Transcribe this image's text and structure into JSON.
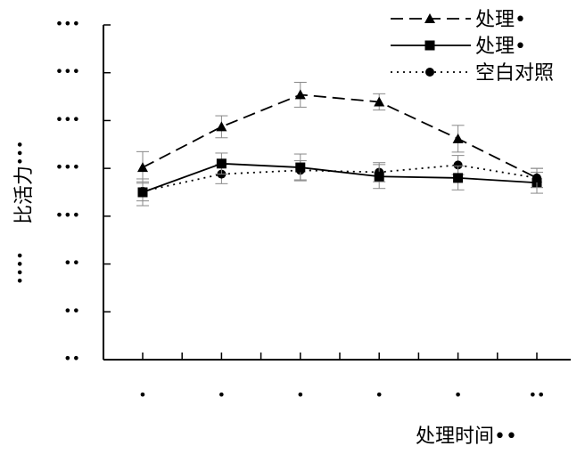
{
  "chart_data": {
    "type": "line",
    "title": "",
    "xlabel": "处理时间••",
    "ylabel": "••••比活力•••",
    "ylabel_bottom": "••••",
    "ylabel_main": "比活力",
    "ylabel_top": "•••",
    "x_tick_labels": [
      "•",
      "•",
      "•",
      "•",
      "•",
      "••"
    ],
    "y_tick_labels": [
      "•••",
      "•••",
      "•••",
      "•••",
      "•••",
      "••",
      "••",
      "••"
    ],
    "ylim": [
      0,
      7
    ],
    "yticks": [
      0,
      1,
      2,
      3,
      4,
      5,
      6,
      7
    ],
    "grid": false,
    "legend_position": "top-right",
    "series": [
      {
        "name": "处理•",
        "marker": "triangle",
        "line_style": "dashed",
        "values": [
          4.02,
          4.87,
          5.54,
          5.39,
          4.62,
          3.8
        ],
        "errors": [
          0.33,
          0.23,
          0.26,
          0.17,
          0.28,
          0.2
        ]
      },
      {
        "name": "处理•",
        "marker": "square",
        "line_style": "solid",
        "values": [
          3.5,
          4.1,
          4.02,
          3.83,
          3.8,
          3.7
        ],
        "errors": [
          0.28,
          0.22,
          0.28,
          0.25,
          0.25,
          0.22
        ]
      },
      {
        "name": "空白对照",
        "marker": "circle",
        "line_style": "dotted",
        "values": [
          3.52,
          3.88,
          3.96,
          3.92,
          4.07,
          3.8
        ],
        "errors": [
          0.2,
          0.2,
          0.2,
          0.2,
          0.2,
          0.2
        ]
      }
    ]
  }
}
